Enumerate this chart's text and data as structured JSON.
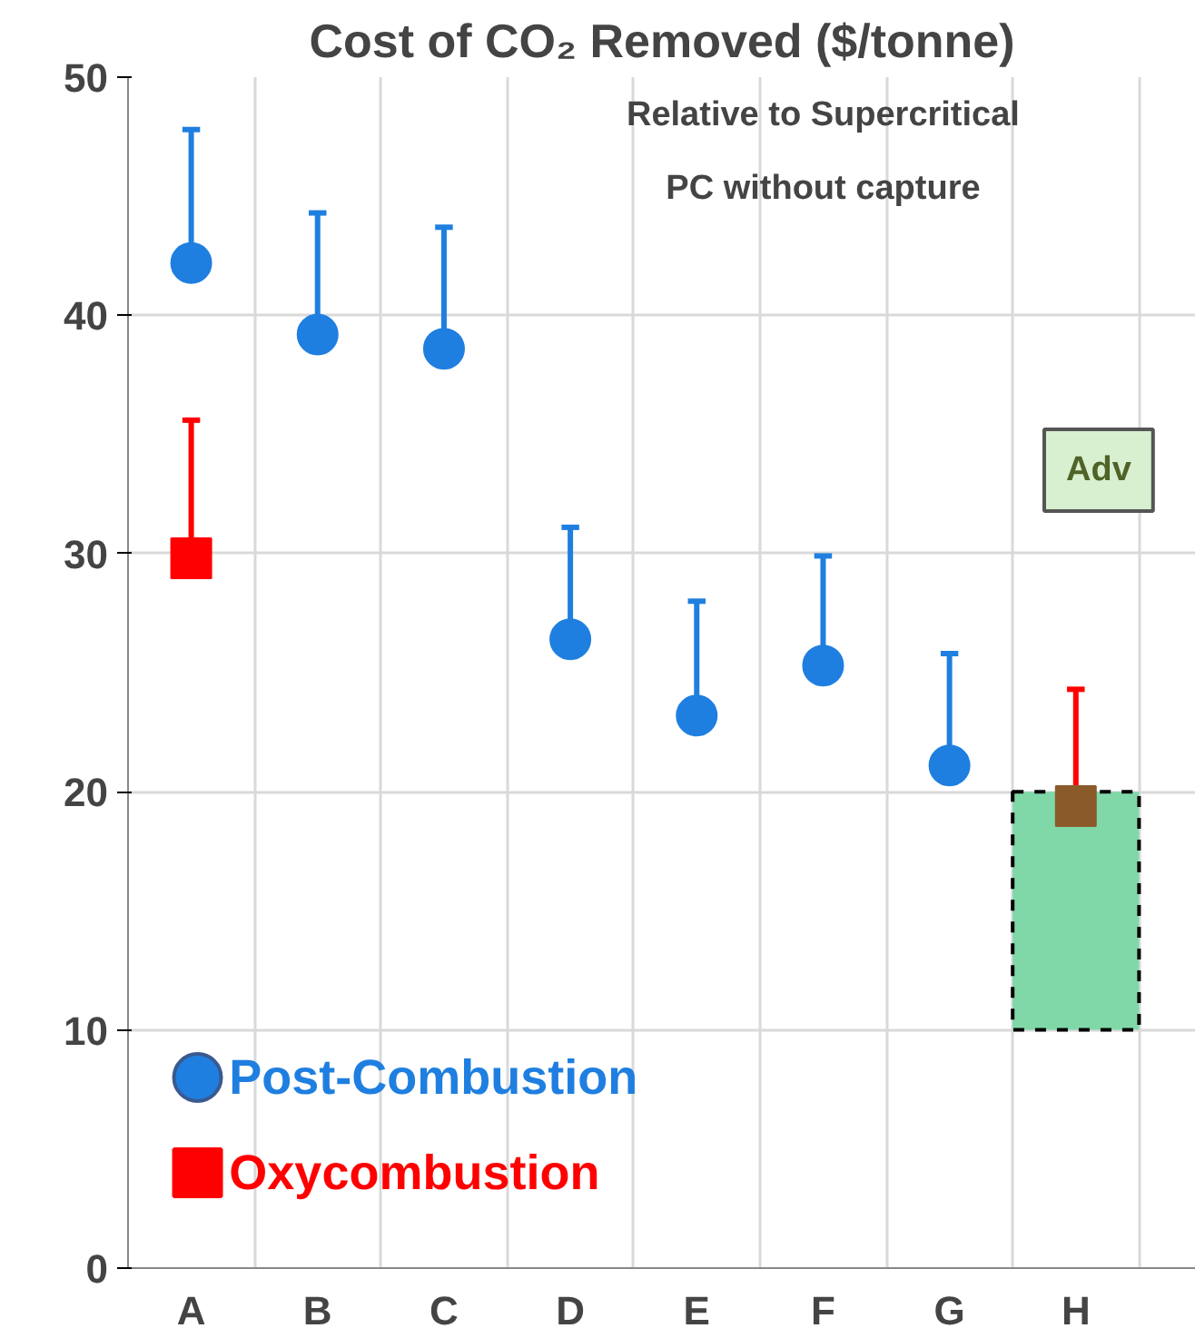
{
  "chart_data": {
    "type": "scatter",
    "title": "Cost of CO₂ Removed ($/tonne)",
    "categories": [
      "A",
      "B",
      "C",
      "D",
      "E",
      "F",
      "G",
      "H"
    ],
    "ylim": [
      0,
      50
    ],
    "yticks": [
      0,
      10,
      20,
      30,
      40,
      50
    ],
    "grid": true,
    "legend": "bottom left",
    "annotations": [
      "Relative to Supercritical\nPC without capture",
      "Adv"
    ],
    "series": [
      {
        "type": "bar",
        "color": "#80d8a8",
        "line_style": "dashed",
        "base": [
          null,
          null,
          null,
          null,
          null,
          null,
          null,
          10
        ],
        "values": [
          null,
          null,
          null,
          null,
          null,
          null,
          null,
          10
        ]
      },
      {
        "name": "Post-Combustion",
        "color": "#1f7fe0",
        "marker": "circle",
        "values": [
          42.2,
          39.2,
          38.6,
          26.4,
          23.2,
          25.3,
          21.1,
          null
        ],
        "errors": [
          [
            42.2,
            47.8
          ],
          [
            39.2,
            44.3
          ],
          [
            38.6,
            43.7
          ],
          [
            26.4,
            31.1
          ],
          [
            23.2,
            28
          ],
          [
            25.3,
            29.9
          ],
          [
            21.1,
            25.8
          ],
          null
        ]
      },
      {
        "name": "Oxycombustion",
        "color": "#ff0000",
        "colors": [
          "#ff0000",
          null,
          null,
          null,
          null,
          null,
          null,
          "#8b5a2b"
        ],
        "marker": "square",
        "values": [
          29.8,
          null,
          null,
          null,
          null,
          null,
          null,
          19.4
        ],
        "errors": [
          [
            29.8,
            35.6
          ],
          null,
          null,
          null,
          null,
          null,
          null,
          [
            19.4,
            24.3
          ]
        ]
      }
    ]
  }
}
